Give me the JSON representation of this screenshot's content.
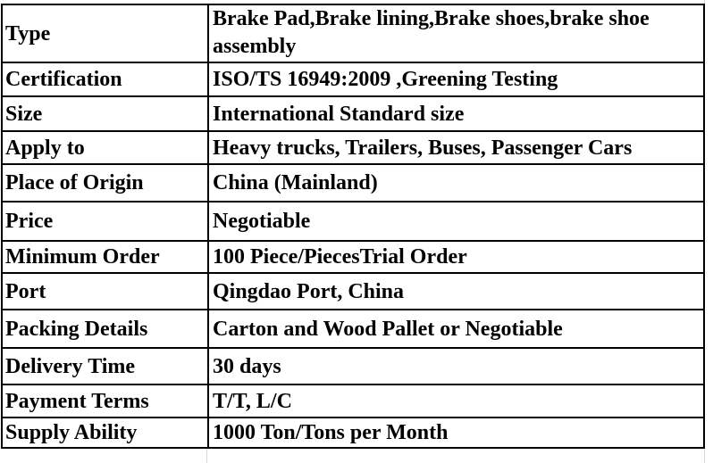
{
  "rows": [
    {
      "label": "Type",
      "value": "Brake Pad,Brake lining,Brake shoes,brake shoe assembly"
    },
    {
      "label": "Certification",
      "value": "ISO/TS 16949:2009 ,Greening Testing"
    },
    {
      "label": "Size",
      "value": "International Standard size"
    },
    {
      "label": "Apply to",
      "value": "Heavy trucks, Trailers, Buses, Passenger Cars"
    },
    {
      "label": "Place of Origin",
      "value": "China (Mainland)"
    },
    {
      "label": "Price",
      "value": "Negotiable"
    },
    {
      "label": "Minimum Order",
      "value": "100 Piece/PiecesTrial Order"
    },
    {
      "label": "Port",
      "value": "Qingdao Port, China"
    },
    {
      "label": "Packing Details",
      "value": "Carton and Wood Pallet or Negotiable"
    },
    {
      "label": "Delivery Time",
      "value": "30 days"
    },
    {
      "label": "Payment Terms",
      "value": "T/T, L/C"
    },
    {
      "label": "Supply Ability",
      "value": "1000 Ton/Tons per Month"
    }
  ]
}
